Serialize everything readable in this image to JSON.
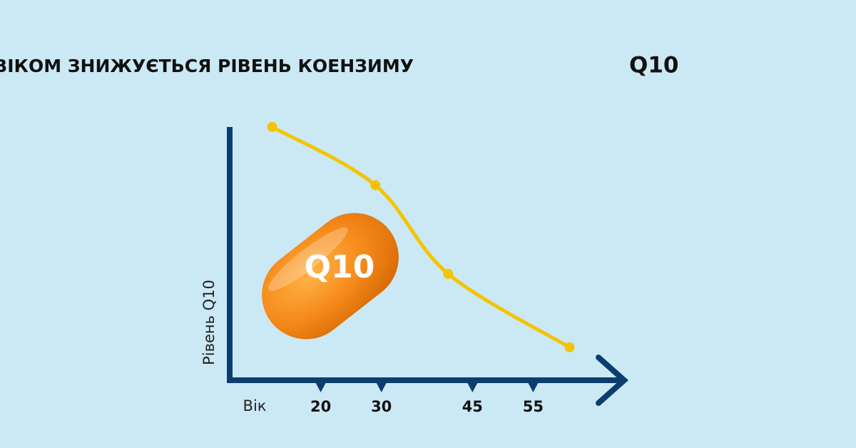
{
  "chart_data": {
    "type": "line",
    "title": "ЯК З ВІКОМ ЗНИЖУЄТЬСЯ РІВЕНЬ КОЕНЗИМУ",
    "title_emphasis": "Q10",
    "x_label": "Вік",
    "y_label": "Рівень Q10",
    "pill_label": "Q10",
    "x": [
      12,
      29,
      41,
      61
    ],
    "series": [
      {
        "color": "#f5c400",
        "values": [
          100,
          77,
          42,
          13
        ]
      }
    ],
    "xlim": [
      5,
      70
    ],
    "xticks": [
      20,
      30,
      45,
      55
    ],
    "ylim": [
      0,
      100
    ],
    "axis_color": "#0b3e6f",
    "background": "#cbe9f5"
  }
}
